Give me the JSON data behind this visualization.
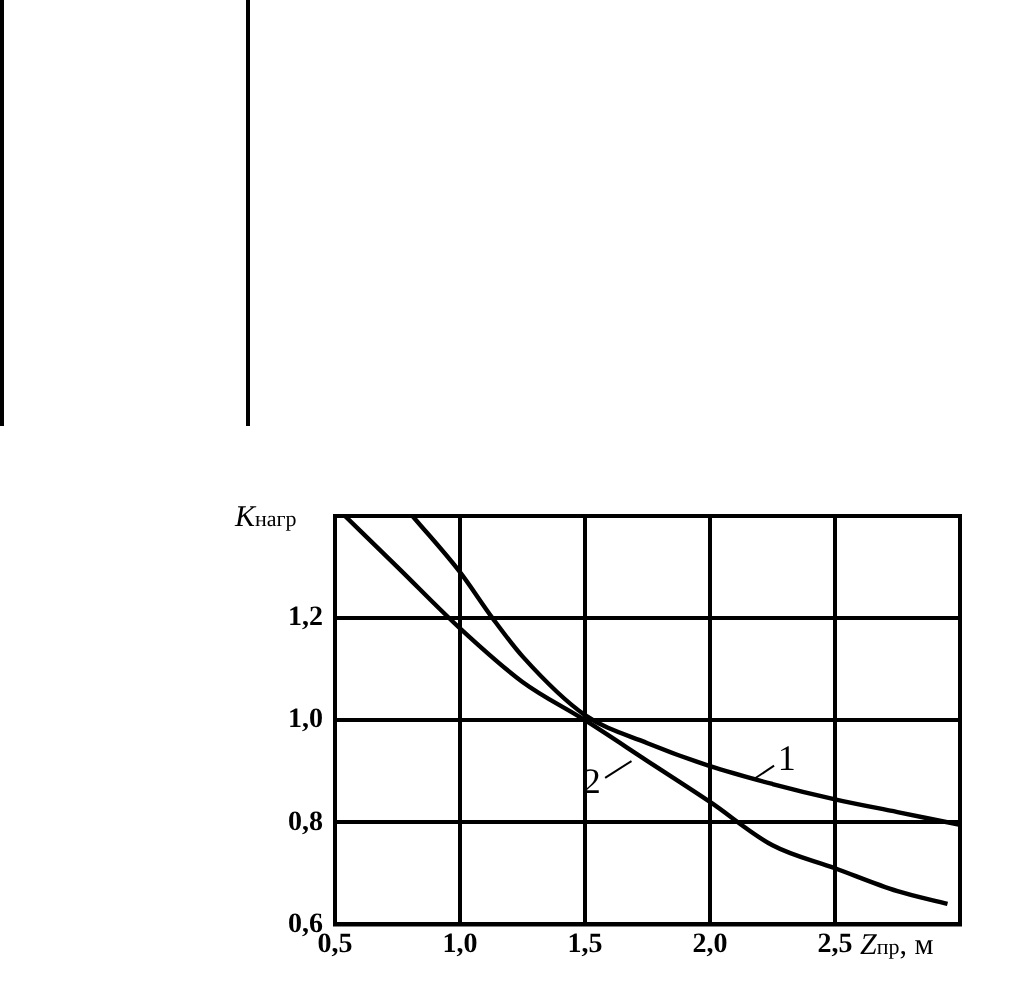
{
  "chart_data": {
    "type": "line",
    "xlabel": "Z$_{пр}$, м",
    "ylabel": "K$_{нагр}$",
    "xlim": [
      0.5,
      3.0
    ],
    "ylim": [
      0.6,
      1.4
    ],
    "xticks": [
      {
        "value": 0.5,
        "label": "0,5"
      },
      {
        "value": 1.0,
        "label": "1,0"
      },
      {
        "value": 1.5,
        "label": "1,5"
      },
      {
        "value": 2.0,
        "label": "2,0"
      },
      {
        "value": 2.5,
        "label": "2,5"
      }
    ],
    "yticks": [
      {
        "value": 0.6,
        "label": "0,6"
      },
      {
        "value": 0.8,
        "label": "0,8"
      },
      {
        "value": 1.0,
        "label": "1,0"
      },
      {
        "value": 1.2,
        "label": "1,2"
      }
    ],
    "grid": true,
    "marker": "none",
    "line_style": "solid",
    "series": [
      {
        "name": "1",
        "color": "#000000",
        "x": [
          0.81,
          1.0,
          1.13,
          1.25,
          1.5,
          1.75,
          2.0,
          2.25,
          2.5,
          2.75,
          3.0
        ],
        "values": [
          1.4,
          1.29,
          1.2,
          1.125,
          1.01,
          0.955,
          0.91,
          0.875,
          0.845,
          0.82,
          0.795
        ]
      },
      {
        "name": "2",
        "color": "#000000",
        "x": [
          0.54,
          0.75,
          1.0,
          1.25,
          1.5,
          1.75,
          2.0,
          2.25,
          2.5,
          2.75,
          2.95
        ],
        "values": [
          1.4,
          1.3,
          1.18,
          1.075,
          1.0,
          0.92,
          0.84,
          0.755,
          0.71,
          0.665,
          0.64
        ]
      }
    ]
  }
}
